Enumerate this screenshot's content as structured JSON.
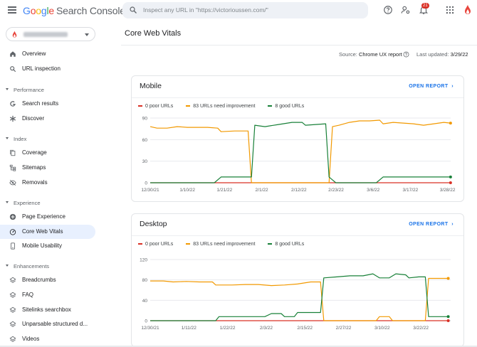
{
  "header": {
    "logo_google": [
      "G",
      "o",
      "o",
      "g",
      "l",
      "e"
    ],
    "product_name": "Search Console",
    "search_placeholder": "Inspect any URL in \"https://victorioussen.com/\"",
    "notification_count": "21"
  },
  "sidebar": {
    "items": [
      {
        "label": "Overview",
        "icon": "home-icon"
      },
      {
        "label": "URL inspection",
        "icon": "search-icon"
      }
    ],
    "sections": [
      {
        "label": "Performance",
        "items": [
          {
            "label": "Search results",
            "icon": "google-g-icon"
          },
          {
            "label": "Discover",
            "icon": "asterisk-icon"
          }
        ]
      },
      {
        "label": "Index",
        "items": [
          {
            "label": "Coverage",
            "icon": "file-copy-icon"
          },
          {
            "label": "Sitemaps",
            "icon": "sitemap-icon"
          },
          {
            "label": "Removals",
            "icon": "visibility-off-icon"
          }
        ]
      },
      {
        "label": "Experience",
        "items": [
          {
            "label": "Page Experience",
            "icon": "add-circle-icon"
          },
          {
            "label": "Core Web Vitals",
            "icon": "speed-icon",
            "active": true
          },
          {
            "label": "Mobile Usability",
            "icon": "smartphone-icon"
          }
        ]
      },
      {
        "label": "Enhancements",
        "items": [
          {
            "label": "Breadcrumbs",
            "icon": "layers-icon"
          },
          {
            "label": "FAQ",
            "icon": "layers-icon"
          },
          {
            "label": "Sitelinks searchbox",
            "icon": "layers-icon"
          },
          {
            "label": "Unparsable structured d...",
            "icon": "layers-icon"
          },
          {
            "label": "Videos",
            "icon": "layers-icon"
          }
        ]
      }
    ]
  },
  "main": {
    "title": "Core Web Vitals",
    "source_label": "Source:",
    "source_value": "Chrome UX report",
    "updated_label": "Last updated:",
    "updated_value": "3/29/22"
  },
  "colors": {
    "poor": "#d93025",
    "improve": "#f29900",
    "good": "#188038",
    "accent": "#1a73e8"
  },
  "chart_data": [
    {
      "type": "line",
      "title": "Mobile",
      "action": "OPEN REPORT",
      "x_ticks": [
        "12/30/21",
        "1/10/22",
        "1/21/22",
        "2/1/22",
        "2/12/22",
        "2/23/22",
        "3/6/22",
        "3/17/22",
        "3/28/22"
      ],
      "ylim": [
        0,
        90
      ],
      "y_ticks": [
        "90",
        "60",
        "30",
        "0"
      ],
      "x_start": "2021-12-30",
      "series": [
        {
          "name": "0 poor URLs",
          "color": "#d93025",
          "points": [
            [
              "2021-12-30",
              0
            ],
            [
              "2022-03-29",
              0
            ]
          ]
        },
        {
          "name": "83 URLs need improvement",
          "color": "#f29900",
          "points": [
            [
              "2021-12-30",
              78
            ],
            [
              "2022-01-01",
              76
            ],
            [
              "2022-01-04",
              76
            ],
            [
              "2022-01-07",
              78
            ],
            [
              "2022-01-10",
              77
            ],
            [
              "2022-01-13",
              77
            ],
            [
              "2022-01-16",
              77
            ],
            [
              "2022-01-19",
              76
            ],
            [
              "2022-01-20",
              71
            ],
            [
              "2022-01-24",
              72
            ],
            [
              "2022-01-28",
              72
            ],
            [
              "2022-01-29",
              0
            ],
            [
              "2022-01-30",
              0
            ],
            [
              "2022-01-31",
              0
            ],
            [
              "2022-02-20",
              0
            ],
            [
              "2022-02-21",
              0
            ],
            [
              "2022-02-22",
              78
            ],
            [
              "2022-02-24",
              80
            ],
            [
              "2022-02-27",
              84
            ],
            [
              "2022-03-02",
              86
            ],
            [
              "2022-03-05",
              86
            ],
            [
              "2022-03-08",
              87
            ],
            [
              "2022-03-09",
              82
            ],
            [
              "2022-03-12",
              84
            ],
            [
              "2022-03-15",
              83
            ],
            [
              "2022-03-18",
              82
            ],
            [
              "2022-03-21",
              80
            ],
            [
              "2022-03-24",
              82
            ],
            [
              "2022-03-27",
              84
            ],
            [
              "2022-03-29",
              83
            ]
          ]
        },
        {
          "name": "8 good URLs",
          "color": "#188038",
          "points": [
            [
              "2021-12-30",
              0
            ],
            [
              "2022-01-18",
              0
            ],
            [
              "2022-01-20",
              8
            ],
            [
              "2022-01-29",
              8
            ],
            [
              "2022-01-30",
              80
            ],
            [
              "2022-02-02",
              78
            ],
            [
              "2022-02-06",
              81
            ],
            [
              "2022-02-10",
              84
            ],
            [
              "2022-02-13",
              84
            ],
            [
              "2022-02-14",
              80
            ],
            [
              "2022-02-17",
              81
            ],
            [
              "2022-02-20",
              82
            ],
            [
              "2022-02-21",
              8
            ],
            [
              "2022-02-23",
              0
            ],
            [
              "2022-03-07",
              0
            ],
            [
              "2022-03-09",
              8
            ],
            [
              "2022-03-29",
              8
            ]
          ]
        }
      ]
    },
    {
      "type": "line",
      "title": "Desktop",
      "action": "OPEN REPORT",
      "x_ticks": [
        "12/30/21",
        "1/11/22",
        "1/22/22",
        "2/3/22",
        "2/15/22",
        "2/27/22",
        "3/10/22",
        "3/22/22"
      ],
      "ylim": [
        0,
        120
      ],
      "y_ticks": [
        "120",
        "80",
        "40",
        "0"
      ],
      "x_start": "2021-12-30",
      "series": [
        {
          "name": "0 poor URLs",
          "color": "#d93025",
          "points": [
            [
              "2021-12-30",
              0
            ],
            [
              "2022-03-31",
              0
            ]
          ]
        },
        {
          "name": "83 URLs need improvement",
          "color": "#f29900",
          "points": [
            [
              "2021-12-30",
              78
            ],
            [
              "2022-01-03",
              78
            ],
            [
              "2022-01-06",
              76
            ],
            [
              "2022-01-10",
              77
            ],
            [
              "2022-01-14",
              76
            ],
            [
              "2022-01-18",
              76
            ],
            [
              "2022-01-19",
              70
            ],
            [
              "2022-01-24",
              70
            ],
            [
              "2022-01-28",
              71
            ],
            [
              "2022-02-01",
              71
            ],
            [
              "2022-02-05",
              69
            ],
            [
              "2022-02-09",
              70
            ],
            [
              "2022-02-13",
              72
            ],
            [
              "2022-02-17",
              76
            ],
            [
              "2022-02-20",
              76
            ],
            [
              "2022-02-21",
              0
            ],
            [
              "2022-03-09",
              0
            ],
            [
              "2022-03-10",
              8
            ],
            [
              "2022-03-13",
              8
            ],
            [
              "2022-03-14",
              0
            ],
            [
              "2022-03-24",
              0
            ],
            [
              "2022-03-25",
              83
            ],
            [
              "2022-03-31",
              83
            ]
          ]
        },
        {
          "name": "8 good URLs",
          "color": "#188038",
          "points": [
            [
              "2021-12-30",
              0
            ],
            [
              "2022-01-19",
              0
            ],
            [
              "2022-01-20",
              8
            ],
            [
              "2022-02-03",
              8
            ],
            [
              "2022-02-05",
              14
            ],
            [
              "2022-02-08",
              14
            ],
            [
              "2022-02-09",
              8
            ],
            [
              "2022-02-12",
              8
            ],
            [
              "2022-02-13",
              16
            ],
            [
              "2022-02-20",
              16
            ],
            [
              "2022-02-21",
              84
            ],
            [
              "2022-02-25",
              86
            ],
            [
              "2022-03-01",
              88
            ],
            [
              "2022-03-05",
              88
            ],
            [
              "2022-03-08",
              92
            ],
            [
              "2022-03-10",
              84
            ],
            [
              "2022-03-13",
              84
            ],
            [
              "2022-03-15",
              92
            ],
            [
              "2022-03-18",
              90
            ],
            [
              "2022-03-19",
              84
            ],
            [
              "2022-03-22",
              86
            ],
            [
              "2022-03-24",
              86
            ],
            [
              "2022-03-25",
              8
            ],
            [
              "2022-03-31",
              8
            ]
          ]
        }
      ]
    }
  ]
}
